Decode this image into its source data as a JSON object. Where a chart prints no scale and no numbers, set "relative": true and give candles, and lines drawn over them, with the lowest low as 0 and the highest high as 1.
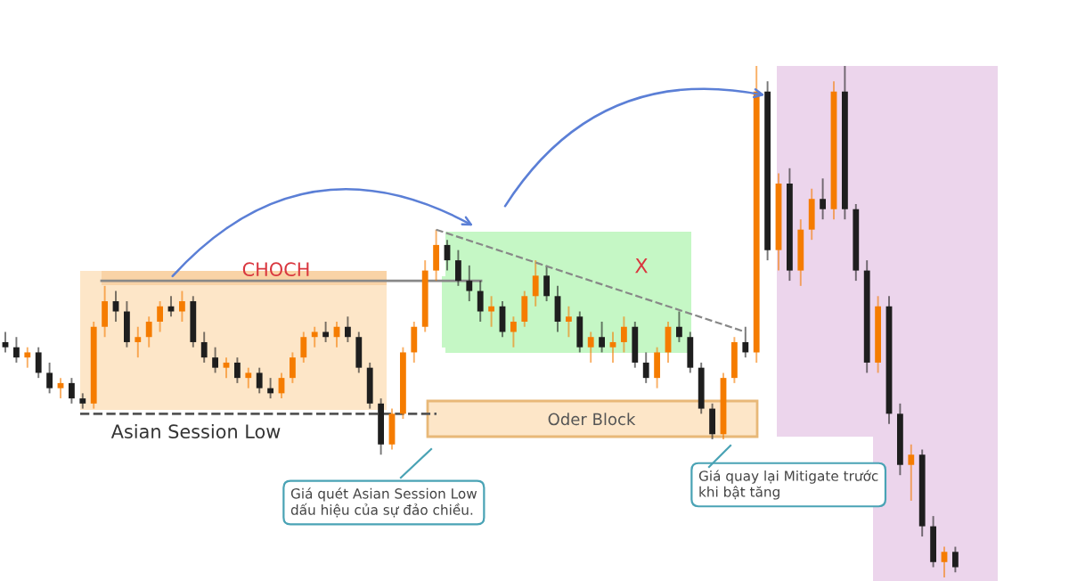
{
  "chart_data": {
    "type": "candlestick",
    "relative": true,
    "categories": [
      null,
      null,
      null,
      null,
      null,
      null,
      null,
      null,
      null,
      null,
      null,
      null,
      null,
      null,
      null,
      null,
      null,
      null,
      null,
      null,
      null,
      null,
      null,
      null,
      null,
      null,
      null,
      null,
      null,
      null,
      null,
      null,
      null,
      null,
      null,
      null,
      null,
      null,
      null,
      null,
      null,
      null,
      null,
      null,
      null,
      null,
      null,
      null,
      null,
      null,
      null,
      null,
      null,
      null,
      null,
      null,
      null,
      null,
      null,
      null,
      null,
      null,
      null,
      null,
      null,
      null,
      null,
      null,
      null,
      null,
      null,
      null,
      null,
      null,
      null,
      null,
      null,
      null,
      null,
      null,
      null,
      null,
      null,
      null,
      null,
      null,
      null
    ],
    "ohlc": [
      [
        0.46,
        0.48,
        0.44,
        0.45
      ],
      [
        0.45,
        0.47,
        0.42,
        0.43
      ],
      [
        0.43,
        0.45,
        0.41,
        0.44
      ],
      [
        0.44,
        0.45,
        0.39,
        0.4
      ],
      [
        0.4,
        0.42,
        0.36,
        0.37
      ],
      [
        0.37,
        0.39,
        0.35,
        0.38
      ],
      [
        0.38,
        0.39,
        0.34,
        0.35
      ],
      [
        0.35,
        0.36,
        0.33,
        0.34
      ],
      [
        0.34,
        0.5,
        0.33,
        0.49
      ],
      [
        0.49,
        0.57,
        0.47,
        0.54
      ],
      [
        0.54,
        0.56,
        0.5,
        0.52
      ],
      [
        0.52,
        0.54,
        0.45,
        0.46
      ],
      [
        0.46,
        0.49,
        0.43,
        0.47
      ],
      [
        0.47,
        0.51,
        0.45,
        0.5
      ],
      [
        0.5,
        0.54,
        0.48,
        0.53
      ],
      [
        0.53,
        0.55,
        0.51,
        0.52
      ],
      [
        0.52,
        0.56,
        0.5,
        0.54
      ],
      [
        0.54,
        0.55,
        0.45,
        0.46
      ],
      [
        0.46,
        0.48,
        0.42,
        0.43
      ],
      [
        0.43,
        0.45,
        0.4,
        0.41
      ],
      [
        0.41,
        0.43,
        0.39,
        0.42
      ],
      [
        0.42,
        0.43,
        0.38,
        0.39
      ],
      [
        0.39,
        0.41,
        0.37,
        0.4
      ],
      [
        0.4,
        0.41,
        0.36,
        0.37
      ],
      [
        0.37,
        0.39,
        0.35,
        0.36
      ],
      [
        0.36,
        0.4,
        0.35,
        0.39
      ],
      [
        0.39,
        0.44,
        0.38,
        0.43
      ],
      [
        0.43,
        0.48,
        0.42,
        0.47
      ],
      [
        0.47,
        0.49,
        0.45,
        0.48
      ],
      [
        0.48,
        0.5,
        0.46,
        0.47
      ],
      [
        0.47,
        0.5,
        0.45,
        0.49
      ],
      [
        0.49,
        0.51,
        0.46,
        0.47
      ],
      [
        0.47,
        0.48,
        0.4,
        0.41
      ],
      [
        0.41,
        0.42,
        0.33,
        0.34
      ],
      [
        0.34,
        0.35,
        0.24,
        0.26
      ],
      [
        0.26,
        0.33,
        0.25,
        0.32
      ],
      [
        0.32,
        0.45,
        0.31,
        0.44
      ],
      [
        0.44,
        0.5,
        0.42,
        0.49
      ],
      [
        0.49,
        0.62,
        0.48,
        0.6
      ],
      [
        0.6,
        0.68,
        0.58,
        0.65
      ],
      [
        0.65,
        0.66,
        0.6,
        0.62
      ],
      [
        0.62,
        0.64,
        0.57,
        0.58
      ],
      [
        0.58,
        0.61,
        0.54,
        0.56
      ],
      [
        0.56,
        0.58,
        0.5,
        0.52
      ],
      [
        0.52,
        0.55,
        0.49,
        0.53
      ],
      [
        0.53,
        0.54,
        0.47,
        0.48
      ],
      [
        0.48,
        0.51,
        0.45,
        0.5
      ],
      [
        0.5,
        0.56,
        0.49,
        0.55
      ],
      [
        0.55,
        0.62,
        0.53,
        0.59
      ],
      [
        0.59,
        0.61,
        0.54,
        0.55
      ],
      [
        0.55,
        0.57,
        0.48,
        0.5
      ],
      [
        0.5,
        0.53,
        0.47,
        0.51
      ],
      [
        0.51,
        0.52,
        0.44,
        0.45
      ],
      [
        0.45,
        0.48,
        0.42,
        0.47
      ],
      [
        0.47,
        0.5,
        0.44,
        0.45
      ],
      [
        0.45,
        0.48,
        0.42,
        0.46
      ],
      [
        0.46,
        0.51,
        0.44,
        0.49
      ],
      [
        0.49,
        0.5,
        0.41,
        0.42
      ],
      [
        0.42,
        0.44,
        0.38,
        0.39
      ],
      [
        0.39,
        0.45,
        0.37,
        0.44
      ],
      [
        0.44,
        0.5,
        0.42,
        0.49
      ],
      [
        0.49,
        0.52,
        0.46,
        0.47
      ],
      [
        0.47,
        0.48,
        0.4,
        0.41
      ],
      [
        0.41,
        0.42,
        0.32,
        0.33
      ],
      [
        0.33,
        0.34,
        0.27,
        0.28
      ],
      [
        0.28,
        0.4,
        0.27,
        0.39
      ],
      [
        0.39,
        0.47,
        0.38,
        0.46
      ],
      [
        0.46,
        0.49,
        0.43,
        0.44
      ],
      [
        0.44,
        1.0,
        0.42,
        0.95
      ],
      [
        0.95,
        0.97,
        0.62,
        0.64
      ],
      [
        0.64,
        0.79,
        0.6,
        0.77
      ],
      [
        0.77,
        0.8,
        0.58,
        0.6
      ],
      [
        0.6,
        0.7,
        0.57,
        0.68
      ],
      [
        0.68,
        0.76,
        0.66,
        0.74
      ],
      [
        0.74,
        0.78,
        0.7,
        0.72
      ],
      [
        0.72,
        0.97,
        0.7,
        0.95
      ],
      [
        0.95,
        1.0,
        0.7,
        0.72
      ],
      [
        0.72,
        0.73,
        0.58,
        0.6
      ],
      [
        0.6,
        0.62,
        0.4,
        0.42
      ],
      [
        0.42,
        0.55,
        0.4,
        0.53
      ],
      [
        0.53,
        0.55,
        0.3,
        0.32
      ],
      [
        0.32,
        0.34,
        0.2,
        0.22
      ],
      [
        0.22,
        0.26,
        0.15,
        0.24
      ],
      [
        0.24,
        0.25,
        0.08,
        0.1
      ],
      [
        0.1,
        0.12,
        0.02,
        0.03
      ],
      [
        0.03,
        0.06,
        0.0,
        0.05
      ],
      [
        0.05,
        0.06,
        0.01,
        0.02
      ]
    ],
    "colors": [
      "#1e1e1e",
      "#1e1e1e",
      "#f57c00",
      "#1e1e1e",
      "#1e1e1e",
      "#f57c00",
      "#1e1e1e",
      "#1e1e1e",
      "#f57c00",
      "#f57c00",
      "#1e1e1e",
      "#1e1e1e",
      "#f57c00",
      "#f57c00",
      "#f57c00",
      "#1e1e1e",
      "#f57c00",
      "#1e1e1e",
      "#1e1e1e",
      "#1e1e1e",
      "#f57c00",
      "#1e1e1e",
      "#f57c00",
      "#1e1e1e",
      "#1e1e1e",
      "#f57c00",
      "#f57c00",
      "#f57c00",
      "#f57c00",
      "#1e1e1e",
      "#f57c00",
      "#1e1e1e",
      "#1e1e1e",
      "#1e1e1e",
      "#1e1e1e",
      "#f57c00",
      "#f57c00",
      "#f57c00",
      "#f57c00",
      "#f57c00",
      "#1e1e1e",
      "#1e1e1e",
      "#1e1e1e",
      "#1e1e1e",
      "#f57c00",
      "#1e1e1e",
      "#f57c00",
      "#f57c00",
      "#f57c00",
      "#1e1e1e",
      "#1e1e1e",
      "#f57c00",
      "#1e1e1e",
      "#f57c00",
      "#1e1e1e",
      "#f57c00",
      "#f57c00",
      "#1e1e1e",
      "#1e1e1e",
      "#f57c00",
      "#f57c00",
      "#1e1e1e",
      "#1e1e1e",
      "#1e1e1e",
      "#1e1e1e",
      "#f57c00",
      "#f57c00",
      "#1e1e1e",
      "#f57c00",
      "#1e1e1e",
      "#f57c00",
      "#1e1e1e",
      "#f57c00",
      "#f57c00",
      "#1e1e1e",
      "#f57c00",
      "#1e1e1e",
      "#1e1e1e",
      "#1e1e1e",
      "#f57c00",
      "#1e1e1e",
      "#1e1e1e",
      "#f57c00",
      "#1e1e1e",
      "#1e1e1e",
      "#f57c00",
      "#1e1e1e"
    ],
    "series": [
      {
        "type": "line",
        "color": "#888888",
        "line_style": "dashed",
        "values": [
          null,
          null,
          null,
          null,
          null,
          null,
          null,
          null,
          null,
          null,
          null,
          null,
          null,
          null,
          null,
          null,
          null,
          null,
          null,
          null,
          null,
          null,
          null,
          null,
          null,
          null,
          null,
          null,
          null,
          null,
          null,
          null,
          null,
          null,
          null,
          null,
          null,
          null,
          null,
          0.68,
          null,
          null,
          null,
          null,
          null,
          null,
          null,
          null,
          null,
          null,
          null,
          null,
          null,
          null,
          null,
          null,
          null,
          null,
          null,
          null,
          null,
          null,
          null,
          null,
          null,
          null,
          null,
          0.48,
          null,
          null,
          null,
          null,
          null,
          null,
          null,
          null,
          null,
          null,
          null,
          null,
          null,
          null,
          null,
          null,
          null,
          null,
          null
        ]
      }
    ],
    "ref_lines": [
      {
        "axis": "y",
        "value": 0.58,
        "label": "CHOCH",
        "color": "#888888",
        "line_style": "solid"
      },
      {
        "axis": "y",
        "value": 0.32,
        "label": "Asian Session Low",
        "color": "#555555",
        "line_style": "dashed"
      }
    ],
    "annotations": [
      "Oder Block",
      "X",
      "Giá quét Asian Session Low dấu hiệu của sự đảo chiều.",
      "Giá quay lại Mitigate trước khi bật tăng"
    ],
    "legend": false
  }
}
